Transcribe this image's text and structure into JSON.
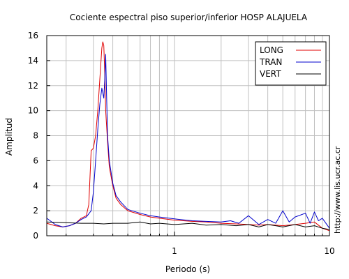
{
  "chart_data": {
    "type": "line",
    "title": "Cociente espectral piso superior/inferior  HOSP ALAJUELA",
    "xlabel": "Periodo (s)",
    "ylabel": "Amplitud",
    "x_scale": "log",
    "xlim": [
      0.15,
      10
    ],
    "ylim": [
      0,
      16
    ],
    "x_ticks": [
      1,
      10
    ],
    "x_tick_labels": [
      "1",
      "10"
    ],
    "y_ticks": [
      0,
      2,
      4,
      6,
      8,
      10,
      12,
      14,
      16
    ],
    "y_tick_labels": [
      "0",
      "2",
      "4",
      "6",
      "8",
      "10",
      "12",
      "14",
      "16"
    ],
    "grid": true,
    "legend_position": "top-right",
    "side_note": "http://www.lis.ucr.ac.cr",
    "colors": {
      "LONG": "#e00000",
      "TRAN": "#0000cc",
      "VERT": "#000000"
    },
    "series": [
      {
        "name": "LONG",
        "color": "#e00000",
        "x": [
          0.15,
          0.17,
          0.19,
          0.21,
          0.23,
          0.25,
          0.27,
          0.28,
          0.29,
          0.3,
          0.31,
          0.32,
          0.33,
          0.34,
          0.345,
          0.35,
          0.355,
          0.36,
          0.37,
          0.38,
          0.4,
          0.42,
          0.45,
          0.5,
          0.6,
          0.7,
          0.8,
          1.0,
          1.3,
          1.6,
          2.0,
          2.5,
          3.0,
          3.5,
          4.0,
          5.0,
          6.0,
          7.0,
          8.0,
          9.0,
          10.0
        ],
        "y": [
          1.0,
          0.8,
          0.7,
          0.8,
          1.0,
          1.4,
          1.6,
          2.5,
          6.8,
          7.0,
          8.0,
          10.0,
          12.5,
          15.0,
          15.5,
          15.2,
          13.0,
          10.0,
          7.5,
          5.5,
          4.0,
          3.0,
          2.5,
          2.0,
          1.7,
          1.5,
          1.4,
          1.25,
          1.15,
          1.1,
          1.0,
          0.95,
          0.9,
          0.85,
          0.9,
          0.8,
          0.9,
          1.0,
          1.1,
          0.6,
          0.4
        ]
      },
      {
        "name": "TRAN",
        "color": "#0000cc",
        "x": [
          0.15,
          0.17,
          0.19,
          0.21,
          0.23,
          0.25,
          0.27,
          0.29,
          0.3,
          0.31,
          0.32,
          0.33,
          0.34,
          0.35,
          0.355,
          0.36,
          0.365,
          0.37,
          0.38,
          0.4,
          0.42,
          0.45,
          0.5,
          0.6,
          0.7,
          0.8,
          1.0,
          1.3,
          1.6,
          2.0,
          2.3,
          2.6,
          3.0,
          3.5,
          4.0,
          4.5,
          5.0,
          5.5,
          6.0,
          7.0,
          7.5,
          8.0,
          8.5,
          9.0,
          10.0
        ],
        "y": [
          1.4,
          0.9,
          0.7,
          0.8,
          1.0,
          1.3,
          1.5,
          2.0,
          3.5,
          6.0,
          8.5,
          10.5,
          11.8,
          11.0,
          12.5,
          14.5,
          11.0,
          8.0,
          6.0,
          4.2,
          3.2,
          2.7,
          2.1,
          1.8,
          1.6,
          1.5,
          1.35,
          1.2,
          1.15,
          1.1,
          1.2,
          1.0,
          1.6,
          0.9,
          1.3,
          1.0,
          2.0,
          1.1,
          1.5,
          1.8,
          1.0,
          1.9,
          1.2,
          1.4,
          0.6
        ]
      },
      {
        "name": "VERT",
        "color": "#000000",
        "x": [
          0.15,
          0.2,
          0.25,
          0.3,
          0.35,
          0.4,
          0.5,
          0.6,
          0.7,
          0.8,
          1.0,
          1.3,
          1.6,
          2.0,
          2.5,
          3.0,
          3.5,
          4.0,
          4.5,
          5.0,
          6.0,
          7.0,
          8.0,
          9.0,
          10.0
        ],
        "y": [
          1.1,
          1.05,
          1.0,
          1.0,
          0.95,
          1.0,
          1.0,
          1.1,
          0.95,
          1.0,
          0.9,
          1.0,
          0.85,
          0.9,
          0.8,
          0.9,
          0.7,
          0.9,
          0.8,
          0.7,
          0.9,
          0.7,
          0.8,
          0.6,
          0.5
        ]
      }
    ]
  }
}
